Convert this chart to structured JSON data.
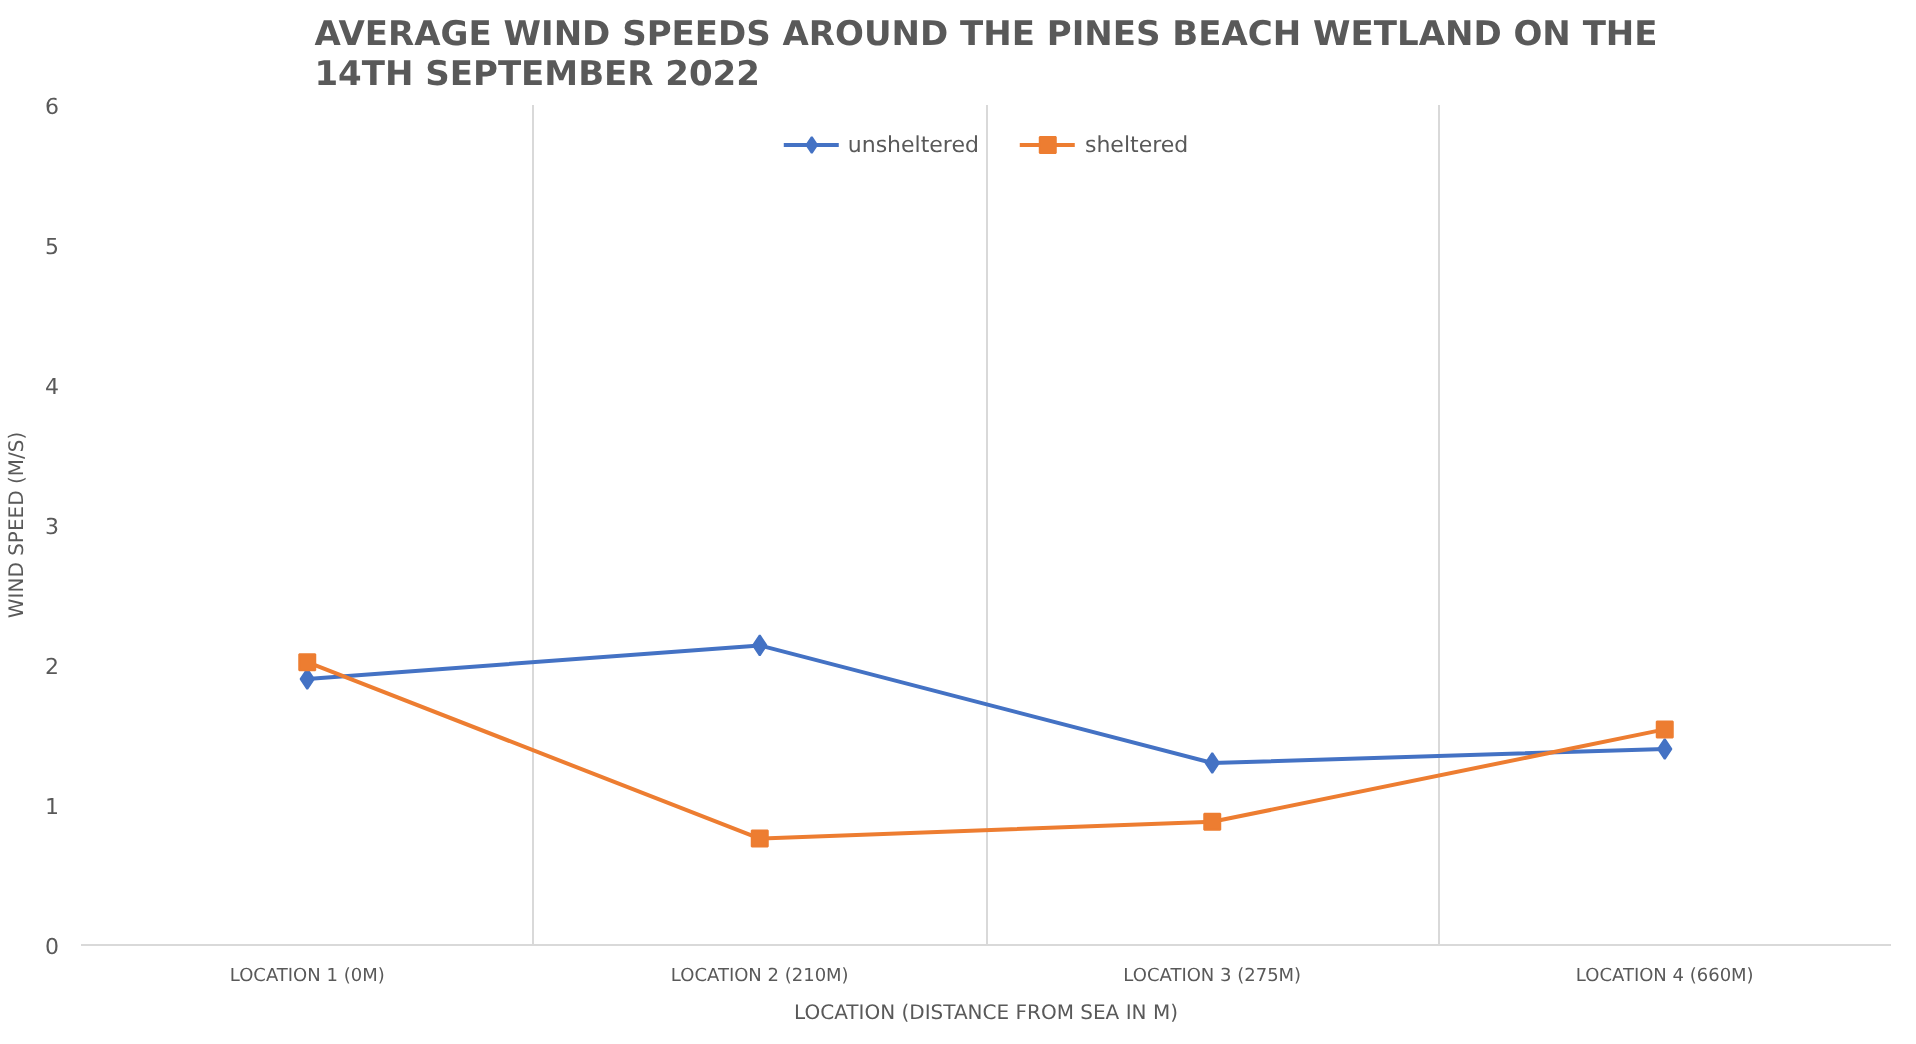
{
  "chart_data": {
    "type": "line",
    "title": "AVERAGE WIND SPEEDS AROUND THE PINES BEACH WETLAND ON THE 14TH SEPTEMBER 2022",
    "xlabel": "LOCATION (DISTANCE FROM SEA IN M)",
    "ylabel": "WIND SPEED (M/S)",
    "categories": [
      "LOCATION 1 (0M)",
      "LOCATION 2 (210M)",
      "LOCATION 3 (275M)",
      "LOCATION 4 (660M)"
    ],
    "series": [
      {
        "name": "unsheltered",
        "color": "#4472c4",
        "marker": "diamond",
        "values": [
          1.9,
          2.14,
          1.3,
          1.4
        ]
      },
      {
        "name": "sheltered",
        "color": "#ed7d31",
        "marker": "square",
        "values": [
          2.02,
          0.76,
          0.88,
          1.54
        ]
      }
    ],
    "ylim": [
      0,
      6
    ],
    "yticks": [
      0,
      1,
      2,
      3,
      4,
      5,
      6
    ],
    "grid": "x",
    "legend": "top",
    "line_style": "solid"
  }
}
